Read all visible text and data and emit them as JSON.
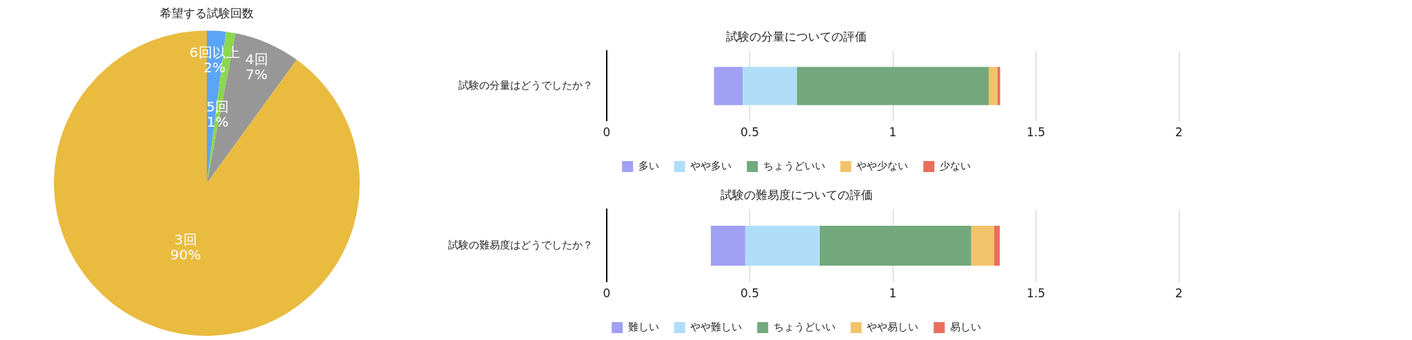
{
  "chart_data": [
    {
      "type": "pie",
      "title": "希望する試験回数",
      "categories": [
        "6回以上",
        "5回",
        "4回",
        "3回"
      ],
      "values": [
        2,
        1,
        7,
        90
      ],
      "colors": [
        "#5aa5f5",
        "#8bd84f",
        "#979797",
        "#e9bb3f"
      ],
      "value_labels": [
        "2%",
        "1%",
        "7%",
        "90%"
      ],
      "legend": false
    },
    {
      "type": "bar",
      "orientation": "horizontal",
      "title": "試験の分量についての評価",
      "categories": [
        "試験の分量はどうでしたか？"
      ],
      "xlim": [
        0,
        2
      ],
      "xticks": [
        0,
        0.5,
        1,
        1.5,
        2
      ],
      "grid": "x",
      "legend": "bottom",
      "series": [
        {
          "name": "多い",
          "color": "#a0a0f5",
          "base": [
            0.375
          ],
          "values": [
            0.1
          ]
        },
        {
          "name": "やや多い",
          "color": "#b0def9",
          "base": [
            0.475
          ],
          "values": [
            0.19
          ]
        },
        {
          "name": "ちょうどいい",
          "color": "#73a97c",
          "base": [
            0.665
          ],
          "values": [
            0.67
          ]
        },
        {
          "name": "やや少ない",
          "color": "#f1c46b",
          "base": [
            1.335
          ],
          "values": [
            0.03
          ]
        },
        {
          "name": "少ない",
          "color": "#e96f5c",
          "base": [
            1.365
          ],
          "values": [
            0.01
          ]
        }
      ]
    },
    {
      "type": "bar",
      "orientation": "horizontal",
      "title": "試験の難易度についての評価",
      "categories": [
        "試験の難易度はどうでしたか？"
      ],
      "xlim": [
        0,
        2
      ],
      "xticks": [
        0,
        0.5,
        1,
        1.5,
        2
      ],
      "grid": "x",
      "legend": "bottom",
      "series": [
        {
          "name": "難しい",
          "color": "#a0a0f5",
          "base": [
            0.364
          ],
          "values": [
            0.12
          ]
        },
        {
          "name": "やや難しい",
          "color": "#b0def9",
          "base": [
            0.484
          ],
          "values": [
            0.26
          ]
        },
        {
          "name": "ちょうどいい",
          "color": "#73a97c",
          "base": [
            0.744
          ],
          "values": [
            0.53
          ]
        },
        {
          "name": "やや易しい",
          "color": "#f1c46b",
          "base": [
            1.274
          ],
          "values": [
            0.08
          ]
        },
        {
          "name": "易しい",
          "color": "#e96f5c",
          "base": [
            1.354
          ],
          "values": [
            0.02
          ]
        }
      ]
    }
  ]
}
